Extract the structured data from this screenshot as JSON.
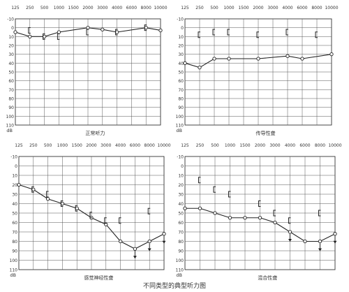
{
  "caption": "不同类型的典型听力图",
  "chart_data": [
    {
      "type": "line",
      "title": "正常听力",
      "ylabel": "dB",
      "categories": [
        "125",
        "250",
        "500",
        "1000",
        "1500",
        "2000",
        "3000",
        "4000",
        "6000",
        "8000",
        "10000"
      ],
      "y_ticks": [
        "-10",
        "0",
        "10",
        "20",
        "30",
        "40",
        "50",
        "60",
        "70",
        "80",
        "90",
        "100",
        "110"
      ],
      "ylim": [
        -10,
        110
      ],
      "y_inverted": true,
      "grid": true,
      "series": [
        {
          "marker": "circle",
          "x": [
            "125",
            "250",
            "500",
            "1000",
            "2000",
            "3000",
            "4000",
            "8000",
            "10000"
          ],
          "values": [
            5,
            10,
            10,
            5,
            0,
            2,
            5,
            0,
            3
          ]
        },
        {
          "marker": "bracket",
          "x": [
            "250",
            "500",
            "1000",
            "2000",
            "4000",
            "8000"
          ],
          "values": [
            3,
            10,
            10,
            5,
            5,
            0
          ]
        }
      ],
      "arrows": []
    },
    {
      "type": "line",
      "title": "传导性聋",
      "ylabel": "dB",
      "categories": [
        "125",
        "250",
        "500",
        "1000",
        "1500",
        "2000",
        "3000",
        "4000",
        "6000",
        "8000",
        "10000"
      ],
      "y_ticks": [
        "-10",
        "0",
        "10",
        "20",
        "30",
        "40",
        "50",
        "60",
        "70",
        "80",
        "90",
        "100",
        "110"
      ],
      "ylim": [
        -10,
        110
      ],
      "y_inverted": true,
      "grid": true,
      "series": [
        {
          "marker": "circle",
          "x": [
            "125",
            "250",
            "500",
            "1000",
            "2000",
            "4000",
            "6000",
            "10000"
          ],
          "values": [
            40,
            45,
            35,
            35,
            35,
            32,
            35,
            30
          ]
        },
        {
          "marker": "bracket",
          "x": [
            "250",
            "500",
            "1000",
            "2000",
            "4000",
            "8000"
          ],
          "values": [
            8,
            5,
            5,
            8,
            5,
            8
          ]
        }
      ],
      "arrows": []
    },
    {
      "type": "line",
      "title": "感觉神经性聋",
      "ylabel": "dB",
      "categories": [
        "125",
        "250",
        "500",
        "1000",
        "1500",
        "2000",
        "3000",
        "4000",
        "6000",
        "8000",
        "10000"
      ],
      "y_ticks": [
        "-10",
        "0",
        "10",
        "20",
        "30",
        "40",
        "50",
        "60",
        "70",
        "80",
        "90",
        "100",
        "110"
      ],
      "ylim": [
        -10,
        110
      ],
      "y_inverted": true,
      "grid": true,
      "series": [
        {
          "marker": "circle",
          "x": [
            "125",
            "250",
            "500",
            "1000",
            "1500",
            "2000",
            "3000",
            "4000",
            "6000",
            "8000",
            "10000"
          ],
          "values": [
            20,
            25,
            35,
            40,
            45,
            55,
            62,
            80,
            88,
            80,
            72
          ]
        },
        {
          "marker": "bracket",
          "x": [
            "250",
            "500",
            "1000",
            "1500",
            "2000",
            "3000",
            "4000",
            "8000"
          ],
          "values": [
            25,
            30,
            40,
            45,
            52,
            58,
            58,
            48
          ]
        }
      ],
      "arrows": [
        "6000",
        "8000",
        "10000"
      ]
    },
    {
      "type": "line",
      "title": "混合性聋",
      "ylabel": "dB",
      "categories": [
        "125",
        "250",
        "500",
        "1000",
        "1500",
        "2000",
        "3000",
        "4000",
        "6000",
        "8000",
        "10000"
      ],
      "y_ticks": [
        "-10",
        "0",
        "10",
        "20",
        "30",
        "40",
        "50",
        "60",
        "70",
        "80",
        "90",
        "100",
        "110"
      ],
      "ylim": [
        -10,
        110
      ],
      "y_inverted": true,
      "grid": true,
      "series": [
        {
          "marker": "circle",
          "x": [
            "125",
            "250",
            "500",
            "1000",
            "1500",
            "2000",
            "3000",
            "4000",
            "6000",
            "8000",
            "10000"
          ],
          "values": [
            45,
            45,
            50,
            55,
            55,
            55,
            60,
            70,
            80,
            80,
            72
          ]
        },
        {
          "marker": "bracket",
          "x": [
            "250",
            "500",
            "1000",
            "2000",
            "3000",
            "4000",
            "8000"
          ],
          "values": [
            15,
            25,
            30,
            40,
            50,
            58,
            50
          ]
        }
      ],
      "arrows": [
        "4000",
        "8000",
        "10000"
      ]
    }
  ]
}
